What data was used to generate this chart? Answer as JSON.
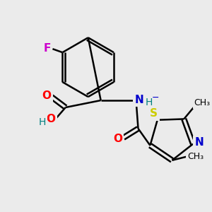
{
  "background_color": "#ebebeb",
  "bond_color": "#000000",
  "atom_colors": {
    "O": "#ff0000",
    "N": "#0000cc",
    "S": "#cccc00",
    "F": "#cc00cc",
    "C": "#000000",
    "H": "#008080"
  },
  "figsize": [
    3.0,
    3.0
  ],
  "dpi": 100
}
